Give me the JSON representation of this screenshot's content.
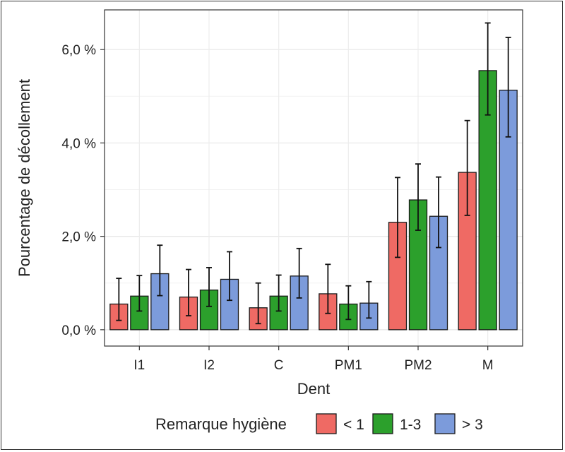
{
  "chart_data": {
    "type": "bar",
    "xlabel": "Dent",
    "ylabel": "Pourcentage de décollement",
    "categories": [
      "I1",
      "I2",
      "C",
      "PM1",
      "PM2",
      "M"
    ],
    "ylim": [
      -0.35,
      6.85
    ],
    "yticks": [
      0,
      2,
      4,
      6
    ],
    "ytick_labels": [
      "0,0 %",
      "2,0 %",
      "4,0 %",
      "6,0 %"
    ],
    "grid": true,
    "legend": {
      "title": "Remarque hygiène",
      "position": "bottom"
    },
    "series": [
      {
        "name": "< 1",
        "color": "#ef6a64",
        "values": [
          0.55,
          0.7,
          0.47,
          0.77,
          2.3,
          3.37
        ],
        "err_low": [
          0.2,
          0.3,
          0.13,
          0.35,
          1.55,
          2.45
        ],
        "err_high": [
          1.1,
          1.29,
          1.0,
          1.4,
          3.26,
          4.48
        ]
      },
      {
        "name": "1-3",
        "color": "#2ca02c",
        "values": [
          0.72,
          0.85,
          0.72,
          0.55,
          2.78,
          5.55
        ],
        "err_low": [
          0.4,
          0.5,
          0.4,
          0.22,
          2.13,
          4.6
        ],
        "err_high": [
          1.16,
          1.33,
          1.17,
          0.94,
          3.55,
          6.57
        ]
      },
      {
        "name": "> 3",
        "color": "#7c9bdb",
        "values": [
          1.2,
          1.08,
          1.15,
          0.57,
          2.43,
          5.13
        ],
        "err_low": [
          0.73,
          0.63,
          0.68,
          0.25,
          1.76,
          4.13
        ],
        "err_high": [
          1.81,
          1.67,
          1.74,
          1.03,
          3.27,
          6.26
        ]
      }
    ]
  }
}
